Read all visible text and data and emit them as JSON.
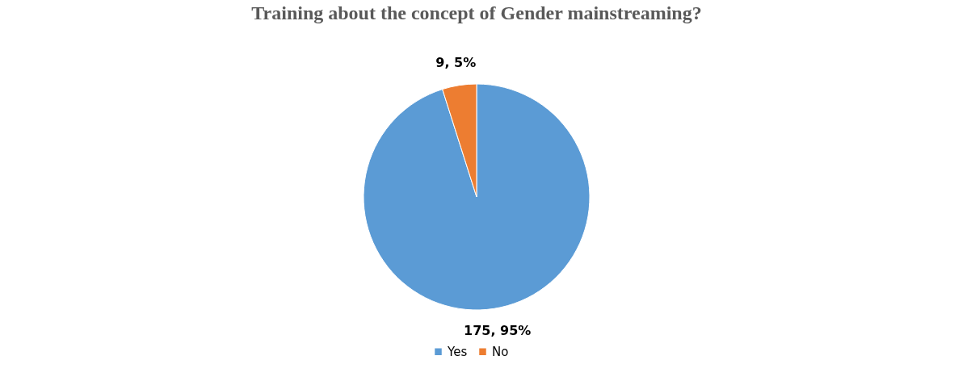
{
  "chart_data": {
    "type": "pie",
    "title": "Training about the concept of Gender mainstreaming?",
    "categories": [
      "Yes",
      "No"
    ],
    "values": [
      175,
      9
    ],
    "colors": [
      "#5b9bd5",
      "#ed7d31"
    ],
    "value_labels": [
      "175, 95%",
      "9, 5%"
    ],
    "legend": "bottom"
  }
}
